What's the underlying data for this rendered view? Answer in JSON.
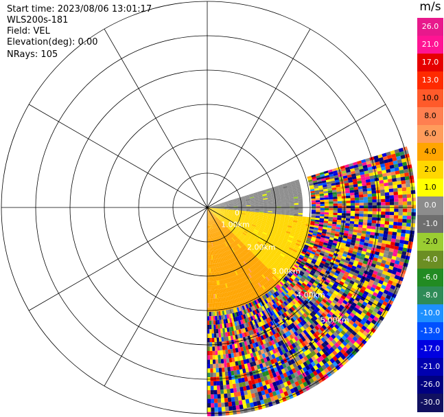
{
  "header": {
    "start_time": "Start time: 2023/08/06 13:01:17",
    "instrument": "WLS200s-181",
    "field": "Field: VEL",
    "elevation": "Elevation(deg): 0.00",
    "nrays": "NRays: 105"
  },
  "colorbar": {
    "title": "m/s",
    "labels": [
      "26.0",
      "21.0",
      "17.0",
      "13.0",
      "10.0",
      "8.0",
      "6.0",
      "4.0",
      "2.0",
      "1.0",
      "0.0",
      "-1.0",
      "-2.0",
      "-4.0",
      "-6.0",
      "-8.0",
      "-10.0",
      "-13.0",
      "-17.0",
      "-21.0",
      "-26.0",
      "-30.0"
    ],
    "colors": [
      "#e8198c",
      "#ff1493",
      "#e60000",
      "#ff2a00",
      "#ff5a2a",
      "#ff7f50",
      "#ff9c5c",
      "#ffa500",
      "#ffd700",
      "#ffff00",
      "#8c8c8c",
      "#6e6e6e",
      "#9acd32",
      "#6b8e23",
      "#228b22",
      "#2e8b57",
      "#1e90ff",
      "#0050ff",
      "#0000e0",
      "#0000b0",
      "#000080",
      "#101060"
    ]
  },
  "chart_data": {
    "type": "heatmap",
    "projection": "polar PPI (north up, clockwise azimuth)",
    "field": "VEL",
    "units": "m/s",
    "vmin": -30.0,
    "vmax": 26.0,
    "azimuth_range_deg": [
      73,
      180
    ],
    "n_rays": 105,
    "range_rings": [
      {
        "label": "0",
        "az_deg": 105
      },
      {
        "label": "1.00km",
        "az_deg": 125
      },
      {
        "label": "2.00km",
        "az_deg": 128
      },
      {
        "label": "3.00km",
        "az_deg": 130
      },
      {
        "label": "4.00km",
        "az_deg": 131
      },
      {
        "label": "5.00km",
        "az_deg": 132
      }
    ],
    "spoke_angles_deg": [
      0,
      30,
      60,
      90,
      120,
      150,
      180,
      210,
      240,
      270,
      300,
      330
    ],
    "sectors": [
      {
        "name": "near-gray",
        "az_from": 73,
        "az_to": 95,
        "gate_from": 0,
        "gate_to": 0.45,
        "value": 0.0
      },
      {
        "name": "yellow-band",
        "az_from": 95,
        "az_to": 135,
        "gate_from": 0,
        "gate_to": 0.5,
        "value": 3.0
      },
      {
        "name": "orange-sector",
        "az_from": 135,
        "az_to": 180,
        "gate_from": 0,
        "gate_to": 0.5,
        "value": 4.5
      },
      {
        "name": "noise-far",
        "az_from": 73,
        "az_to": 180,
        "gate_from": 0.5,
        "gate_to": 1.0,
        "value": "random"
      }
    ]
  }
}
